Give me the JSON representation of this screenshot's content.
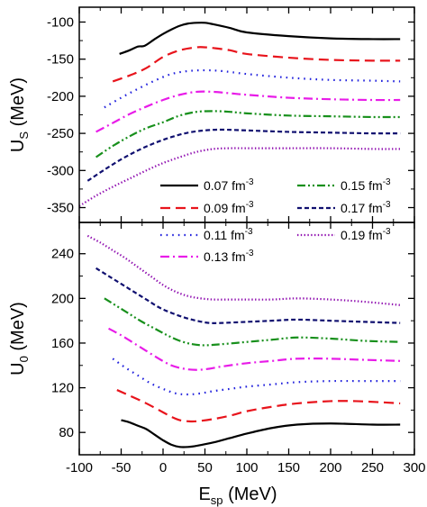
{
  "chart_data": {
    "type": "line",
    "xlabel": "E",
    "xlabel_sub": "sp",
    "xlabel_unit": " (MeV)",
    "xlim": [
      -100,
      300
    ],
    "xticks": [
      -100,
      -50,
      0,
      50,
      100,
      150,
      200,
      250,
      300
    ],
    "legend": {
      "placement": "center",
      "prefix": "",
      "unit": " fm",
      "exponent": "-3"
    },
    "series": [
      {
        "name": "0.07",
        "color": "#000000",
        "dash": "solid"
      },
      {
        "name": "0.09",
        "color": "#e8141c",
        "dash": "dash"
      },
      {
        "name": "0.11",
        "color": "#2222dd",
        "dash": "dot"
      },
      {
        "name": "0.13",
        "color": "#e81ce8",
        "dash": "dashdot"
      },
      {
        "name": "0.15",
        "color": "#18901c",
        "dash": "dashdotdot"
      },
      {
        "name": "0.17",
        "color": "#101070",
        "dash": "shortdash"
      },
      {
        "name": "0.19",
        "color": "#9010b0",
        "dash": "finedot"
      }
    ],
    "panels": [
      {
        "id": "us",
        "ylabel": "U",
        "ylabel_sub": "S",
        "ylabel_unit": " (MeV)",
        "ylim": [
          -370,
          -80
        ],
        "yticks": [
          -350,
          -300,
          -250,
          -200,
          -150,
          -100
        ],
        "curves": [
          {
            "x": [
              -52,
              -40,
              -30,
              -22,
              -10,
              0,
              10,
              20,
              30,
              40,
              50,
              60,
              80,
              100,
              150,
              200,
              250,
              283
            ],
            "y": [
              -143,
              -138,
              -133,
              -132,
              -123,
              -116,
              -110,
              -105,
              -102,
              -101,
              -101,
              -103,
              -108,
              -114,
              -119,
              -122,
              -123,
              -123
            ]
          },
          {
            "x": [
              -60,
              -40,
              -20,
              0,
              20,
              40,
              50,
              60,
              80,
              100,
              150,
              200,
              250,
              283
            ],
            "y": [
              -180,
              -172,
              -162,
              -147,
              -138,
              -134,
              -134,
              -135,
              -138,
              -143,
              -148,
              -151,
              -152,
              -152
            ]
          },
          {
            "x": [
              -70,
              -50,
              -30,
              -10,
              10,
              30,
              50,
              70,
              100,
              150,
              200,
              250,
              283
            ],
            "y": [
              -215,
              -202,
              -190,
              -179,
              -170,
              -166,
              -165,
              -166,
              -170,
              -175,
              -178,
              -179,
              -180
            ]
          },
          {
            "x": [
              -80,
              -60,
              -40,
              -20,
              0,
              20,
              40,
              60,
              80,
              100,
              150,
              200,
              250,
              283
            ],
            "y": [
              -248,
              -236,
              -224,
              -214,
              -205,
              -198,
              -194,
              -194,
              -196,
              -198,
              -202,
              -204,
              -205,
              -205
            ]
          },
          {
            "x": [
              -80,
              -60,
              -40,
              -20,
              0,
              20,
              40,
              60,
              80,
              100,
              150,
              200,
              250,
              283
            ],
            "y": [
              -282,
              -267,
              -254,
              -243,
              -235,
              -226,
              -221,
              -220,
              -221,
              -223,
              -226,
              -227,
              -228,
              -228
            ]
          },
          {
            "x": [
              -90,
              -70,
              -50,
              -30,
              -10,
              10,
              30,
              50,
              70,
              100,
              150,
              200,
              250,
              283
            ],
            "y": [
              -314,
              -299,
              -285,
              -273,
              -263,
              -255,
              -249,
              -246,
              -245,
              -246,
              -248,
              -249,
              -250,
              -250
            ]
          },
          {
            "x": [
              -100,
              -80,
              -60,
              -40,
              -20,
              0,
              20,
              40,
              60,
              80,
              100,
              150,
              200,
              250,
              283
            ],
            "y": [
              -348,
              -334,
              -322,
              -311,
              -300,
              -290,
              -282,
              -275,
              -271,
              -270,
              -270,
              -270,
              -270,
              -271,
              -271
            ]
          }
        ]
      },
      {
        "id": "u0",
        "ylabel": "U",
        "ylabel_sub": "0",
        "ylabel_unit": " (MeV)",
        "ylim": [
          60,
          268
        ],
        "yticks": [
          80,
          120,
          160,
          200,
          240
        ],
        "curves": [
          {
            "x": [
              -50,
              -40,
              -30,
              -20,
              -10,
              0,
              10,
              20,
              30,
              40,
              60,
              80,
              100,
              130,
              160,
              200,
              250,
              283
            ],
            "y": [
              91,
              89,
              86,
              83,
              78,
              73,
              69,
              67,
              67,
              68,
              71,
              75,
              79,
              84,
              87,
              88,
              87,
              87
            ]
          },
          {
            "x": [
              -55,
              -40,
              -20,
              0,
              10,
              20,
              30,
              40,
              60,
              80,
              100,
              130,
              160,
              200,
              230,
              260,
              283
            ],
            "y": [
              118,
              113,
              106,
              98,
              94,
              91,
              90,
              90,
              92,
              95,
              99,
              103,
              106,
              108,
              108,
              107,
              106
            ]
          },
          {
            "x": [
              -60,
              -45,
              -30,
              -15,
              0,
              15,
              30,
              45,
              60,
              80,
              100,
              130,
              160,
              200,
              240,
              283
            ],
            "y": [
              146,
              138,
              131,
              124,
              119,
              115,
              114,
              115,
              117,
              119,
              121,
              123,
              125,
              126,
              126,
              126
            ]
          },
          {
            "x": [
              -65,
              -50,
              -35,
              -20,
              -5,
              10,
              25,
              40,
              55,
              70,
              100,
              130,
              160,
              200,
              240,
              283
            ],
            "y": [
              173,
              167,
              160,
              153,
              146,
              140,
              137,
              136,
              137,
              139,
              142,
              144,
              146,
              146,
              145,
              144
            ]
          },
          {
            "x": [
              -70,
              -55,
              -40,
              -25,
              -10,
              5,
              20,
              35,
              50,
              70,
              100,
              130,
              160,
              200,
              240,
              283
            ],
            "y": [
              200,
              193,
              186,
              179,
              173,
              167,
              162,
              159,
              158,
              159,
              161,
              163,
              165,
              164,
              162,
              161
            ]
          },
          {
            "x": [
              -80,
              -65,
              -50,
              -35,
              -20,
              -5,
              10,
              25,
              40,
              55,
              70,
              100,
              130,
              160,
              200,
              240,
              283
            ],
            "y": [
              227,
              220,
              213,
              206,
              199,
              192,
              187,
              183,
              180,
              178,
              178,
              179,
              180,
              181,
              180,
              179,
              178
            ]
          },
          {
            "x": [
              -90,
              -75,
              -60,
              -45,
              -30,
              -15,
              0,
              15,
              30,
              45,
              60,
              80,
              100,
              130,
              160,
              200,
              240,
              283
            ],
            "y": [
              256,
              250,
              243,
              236,
              228,
              220,
              212,
              206,
              202,
              200,
              199,
              199,
              199,
              199,
              200,
              199,
              197,
              194
            ]
          }
        ]
      }
    ]
  }
}
